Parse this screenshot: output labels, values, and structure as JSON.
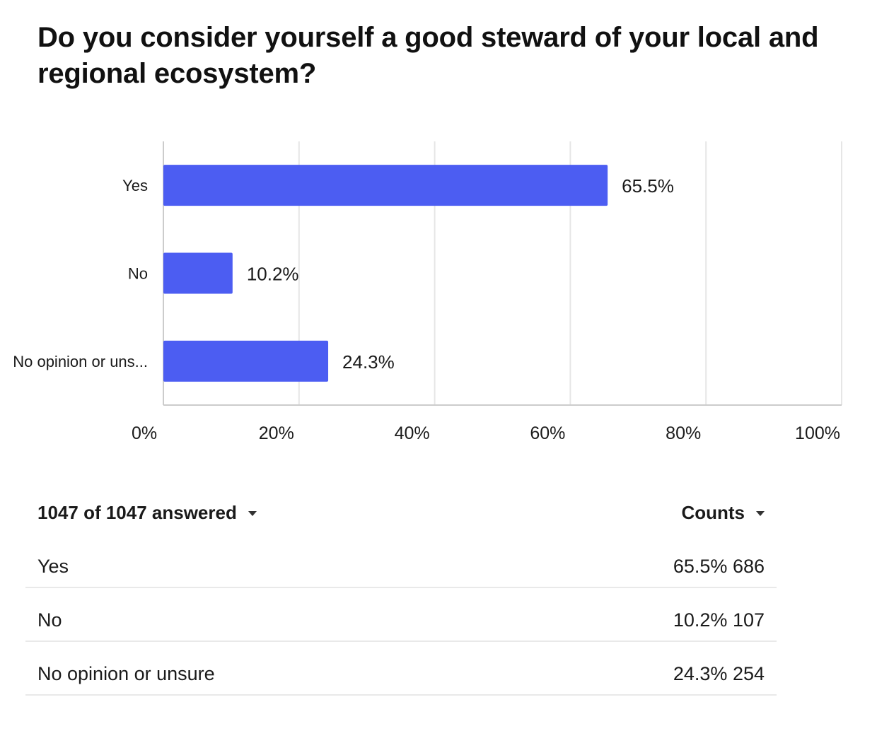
{
  "question": "Do you consider yourself a good steward of your local and regional ecosystem?",
  "chart_data": {
    "type": "bar",
    "orientation": "horizontal",
    "title": "Do you consider yourself a good steward of your local and regional ecosystem?",
    "categories": [
      "Yes",
      "No",
      "No opinion or uns..."
    ],
    "values": [
      65.5,
      10.2,
      24.3
    ],
    "value_labels": [
      "65.5%",
      "10.2%",
      "24.3%"
    ],
    "xlim": [
      0,
      100
    ],
    "x_ticks": [
      "0%",
      "20%",
      "40%",
      "60%",
      "80%",
      "100%"
    ],
    "xlabel": "",
    "ylabel": "",
    "grid": true,
    "bar_color": "#4c5df2"
  },
  "summary": {
    "answered_label": "1047 of 1047 answered",
    "counts_label": "Counts",
    "rows": [
      {
        "label": "Yes",
        "percent": "65.5%",
        "count": "686"
      },
      {
        "label": "No",
        "percent": "10.2%",
        "count": "107"
      },
      {
        "label": "No opinion or unsure",
        "percent": "24.3%",
        "count": "254"
      }
    ]
  },
  "colors": {
    "bar": "#4c5df2",
    "grid": "#e6e6e6",
    "axis": "#cccccc",
    "divider": "#e9e9e9"
  }
}
